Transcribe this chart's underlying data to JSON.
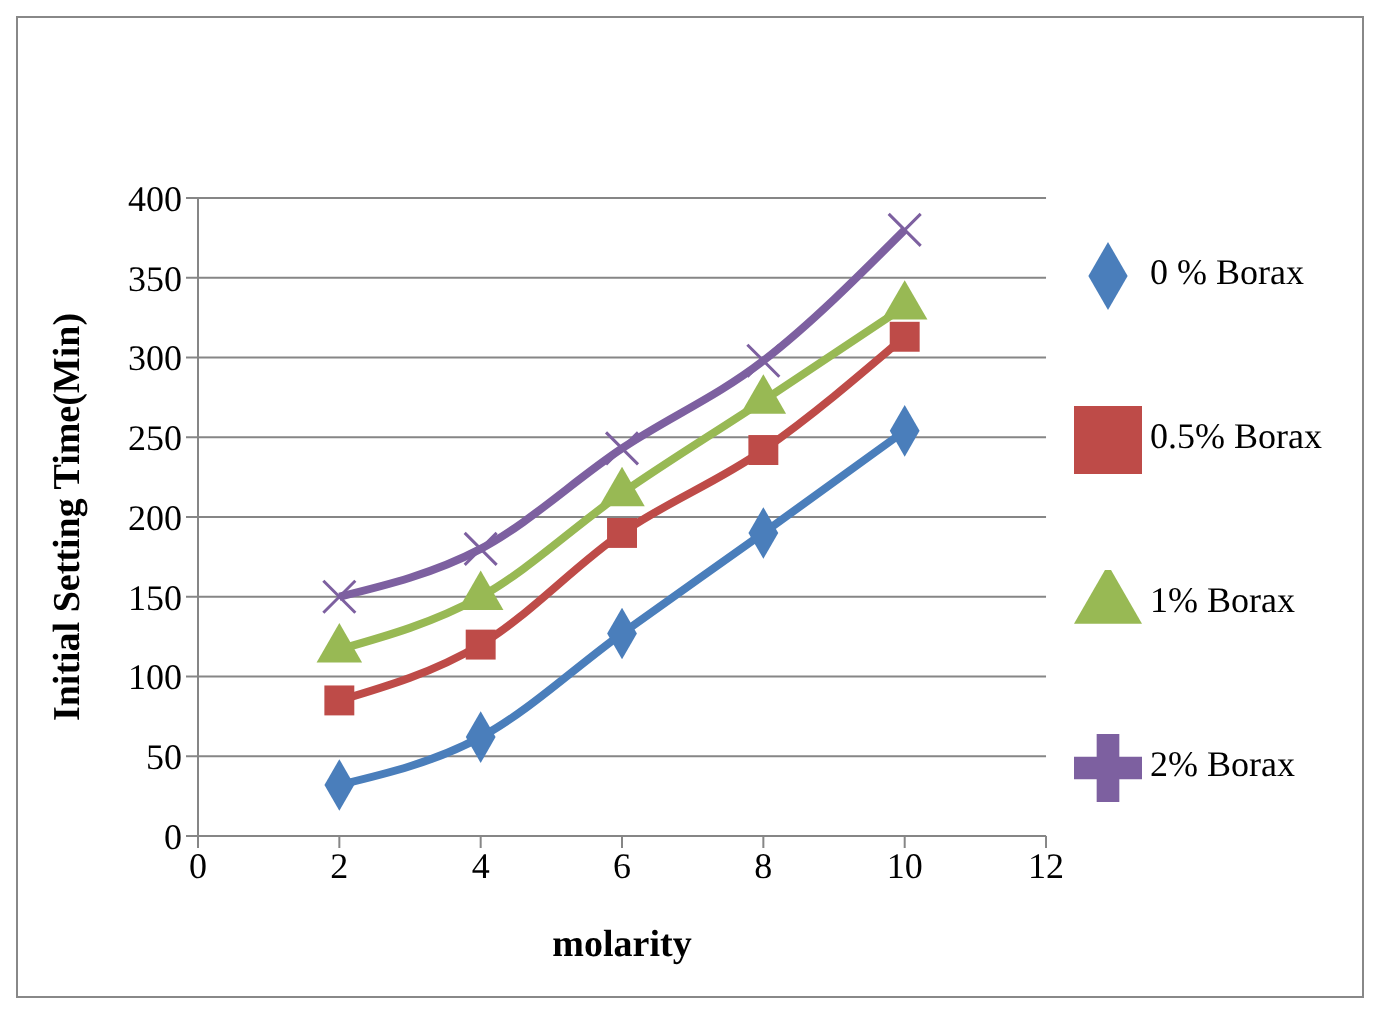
{
  "chart_data": {
    "type": "line",
    "xlabel": "molarity",
    "ylabel": "Initial Setting Time(Min)",
    "x": [
      2,
      4,
      6,
      8,
      10
    ],
    "series": [
      {
        "name": "0 % Borax",
        "color": "#4a7ebb",
        "marker": "diamond",
        "values": [
          32,
          62,
          127,
          190,
          254
        ]
      },
      {
        "name": "0.5% Borax",
        "color": "#be4b48",
        "marker": "square",
        "values": [
          85,
          120,
          190,
          242,
          313
        ]
      },
      {
        "name": "1% Borax",
        "color": "#98b954",
        "marker": "triangle",
        "values": [
          117,
          150,
          215,
          273,
          332
        ]
      },
      {
        "name": "2% Borax",
        "color": "#7d60a0",
        "marker": "cross",
        "values": [
          150,
          180,
          243,
          298,
          380
        ]
      }
    ],
    "xlim": [
      0,
      12
    ],
    "xticks": [
      0,
      2,
      4,
      6,
      8,
      10,
      12
    ],
    "ylim": [
      0,
      400
    ],
    "yticks": [
      0,
      50,
      100,
      150,
      200,
      250,
      300,
      350,
      400
    ],
    "grid": "y",
    "legend": "right",
    "line_style": "solid"
  }
}
